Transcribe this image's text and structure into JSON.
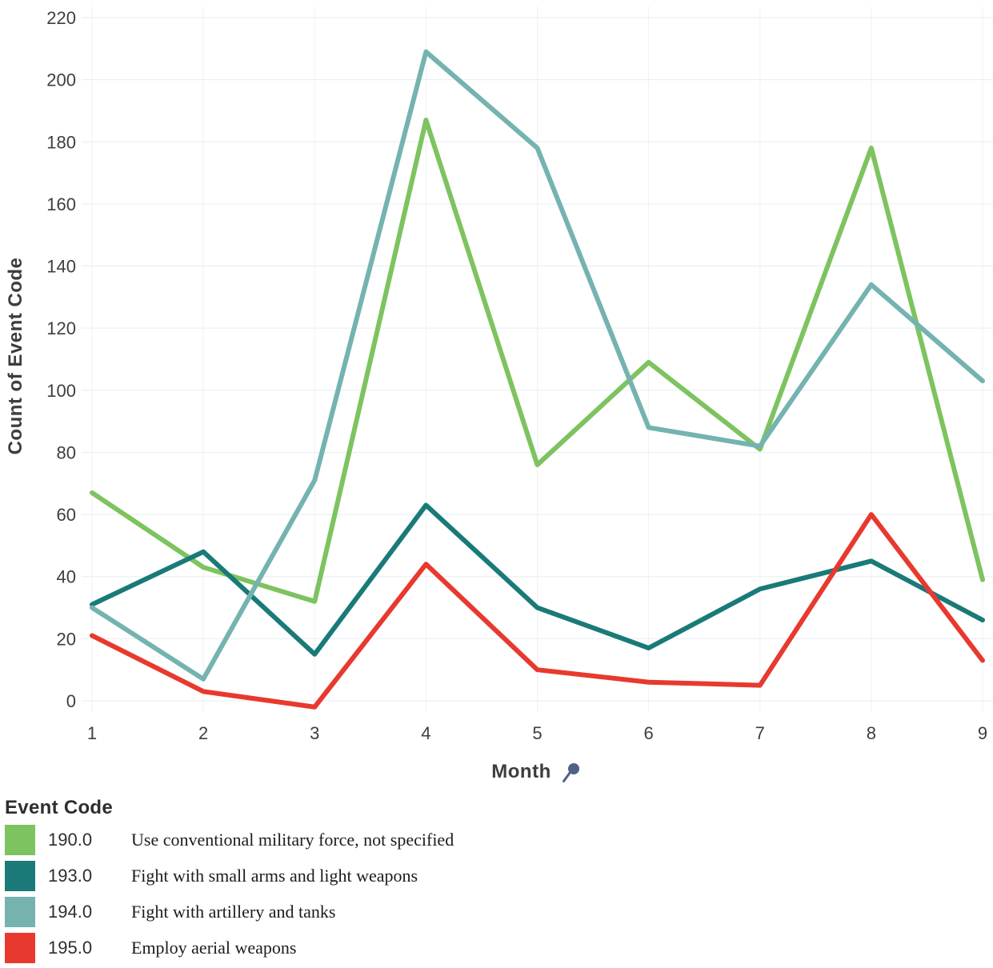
{
  "colors": {
    "grid_h": "#e7edf0",
    "grid_v": "#edf2f4",
    "axis_text": "#3e3e3e",
    "axis_title": "#3d3d3d",
    "pin": "#4f608a"
  },
  "chart_data": {
    "type": "line",
    "title": "",
    "xlabel": "Month",
    "ylabel": "Count of Event Code",
    "x": [
      1,
      2,
      3,
      4,
      5,
      6,
      7,
      8,
      9
    ],
    "yticks": [
      0,
      20,
      40,
      60,
      80,
      100,
      120,
      140,
      160,
      180,
      200,
      220
    ],
    "ylim": [
      -5,
      220
    ],
    "grid": true,
    "legend_position": "bottom-left",
    "series": [
      {
        "name": "190.0",
        "label": "Use conventional military force, not specified",
        "color": "#7dc35f",
        "values": [
          67,
          43,
          32,
          187,
          76,
          109,
          81,
          178,
          39
        ]
      },
      {
        "name": "193.0",
        "label": "Fight with small arms and light weapons",
        "color": "#1a7a78",
        "values": [
          31,
          48,
          15,
          63,
          30,
          17,
          36,
          45,
          26
        ]
      },
      {
        "name": "194.0",
        "label": "Fight with artillery and tanks",
        "color": "#74b3b0",
        "values": [
          30,
          7,
          71,
          209,
          178,
          88,
          82,
          134,
          103
        ]
      },
      {
        "name": "195.0",
        "label": "Employ aerial weapons",
        "color": "#e8392f",
        "values": [
          21,
          3,
          -2,
          44,
          10,
          6,
          5,
          60,
          13
        ]
      }
    ]
  },
  "legend": {
    "title": "Event Code",
    "items": [
      {
        "code": "190.0",
        "label": "Use conventional military force, not specified",
        "color": "#7dc35f"
      },
      {
        "code": "193.0",
        "label": "Fight with small arms and light weapons",
        "color": "#1a7a78"
      },
      {
        "code": "194.0",
        "label": "Fight with artillery and tanks",
        "color": "#74b3b0"
      },
      {
        "code": "195.0",
        "label": "Employ aerial weapons",
        "color": "#e8392f"
      }
    ]
  }
}
